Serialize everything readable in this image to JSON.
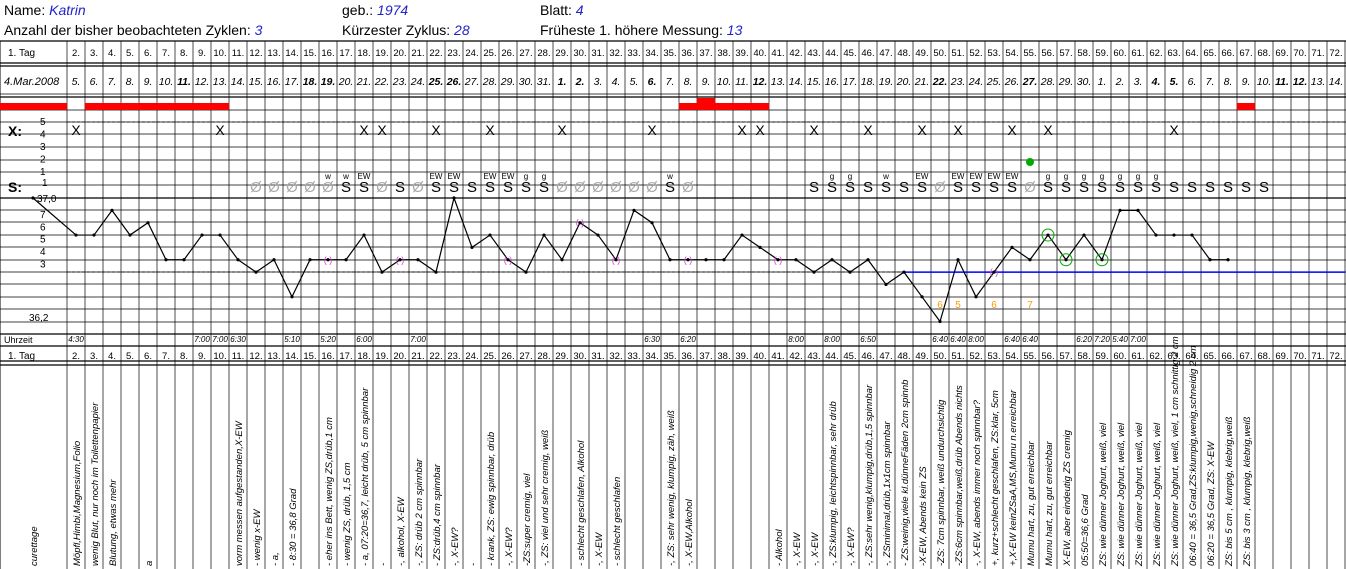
{
  "header": {
    "name_label": "Name:",
    "name_value": "Katrin",
    "born_label": "geb.:",
    "born_value": "1974",
    "sheet_label": "Blatt:",
    "sheet_value": "4",
    "cycles_label": "Anzahl der bisher beobachteten Zyklen:",
    "cycles_value": "3",
    "shortest_label": "Kürzester Zyklus:",
    "shortest_value": "28",
    "earliest_label": "Früheste 1. höhere Messung:",
    "earliest_value": "13"
  },
  "rows": {
    "day_label": "1. Tag",
    "start_date": "4.Mar.2008",
    "bleed_label": "6",
    "x_label": "X:",
    "s_label": "S:",
    "temp_top_label": "37,0",
    "temp_bottom_label": "36,2",
    "time_label": "Uhrzeit"
  },
  "days": [
    "2.",
    "3.",
    "4.",
    "5.",
    "6.",
    "7.",
    "8.",
    "9.",
    "10.",
    "11.",
    "12.",
    "13.",
    "14.",
    "15.",
    "16.",
    "17.",
    "18.",
    "19.",
    "20.",
    "21.",
    "22.",
    "23.",
    "24.",
    "25.",
    "26.",
    "27.",
    "28.",
    "29.",
    "30.",
    "31.",
    "32.",
    "33.",
    "34.",
    "35.",
    "36.",
    "37.",
    "38.",
    "39.",
    "40.",
    "41.",
    "42.",
    "43.",
    "44.",
    "45.",
    "46.",
    "47.",
    "48.",
    "49.",
    "50.",
    "51.",
    "52.",
    "53.",
    "54.",
    "55.",
    "56.",
    "57.",
    "58.",
    "59.",
    "60.",
    "61.",
    "62.",
    "63.",
    "64.",
    "65.",
    "66.",
    "67.",
    "68.",
    "69.",
    "70.",
    "71.",
    "72."
  ],
  "dates": [
    "5.",
    "6.",
    "7.",
    "8.",
    "9.",
    "10.",
    "11.",
    "12.",
    "13.",
    "14.",
    "15.",
    "16.",
    "17.",
    "18.",
    "19.",
    "20.",
    "21.",
    "22.",
    "23.",
    "24.",
    "25.",
    "26.",
    "27.",
    "28.",
    "29.",
    "30.",
    "31.",
    "1.",
    "2.",
    "3.",
    "4.",
    "5.",
    "6.",
    "7.",
    "8.",
    "9.",
    "10.",
    "11.",
    "12.",
    "13.",
    "14.",
    "15.",
    "16.",
    "17.",
    "18.",
    "19.",
    "20.",
    "21.",
    "22.",
    "23.",
    "24.",
    "25.",
    "26.",
    "27.",
    "28.",
    "29.",
    "30.",
    "1.",
    "2.",
    "3.",
    "4.",
    "5.",
    "6.",
    "7.",
    "8.",
    "9.",
    "10.",
    "11.",
    "12.",
    "13.",
    "14."
  ],
  "bold_date_days": [
    8,
    15,
    16,
    22,
    23,
    29,
    30,
    34,
    40,
    50,
    55,
    62,
    63,
    69,
    70
  ],
  "temp_ticks": [
    "7",
    "6",
    "5",
    "4",
    "3"
  ],
  "x_ticks": [
    "5",
    "4",
    "3",
    "2",
    "1"
  ],
  "bleed_ticks": [
    "6"
  ],
  "chart_data": {
    "type": "line",
    "title": "",
    "xlabel": "1. Tag",
    "ylabel": "",
    "ylim": [
      36.1,
      37.0
    ],
    "x": [
      1,
      2,
      3,
      4,
      5,
      6,
      7,
      8,
      9,
      10,
      11,
      12,
      13,
      14,
      15,
      16,
      17,
      18,
      19,
      20,
      21,
      22,
      23,
      24,
      25,
      26,
      27,
      28,
      29,
      30,
      31,
      32,
      33,
      34,
      35,
      36,
      37,
      38,
      39,
      40,
      41,
      42,
      43,
      44,
      45,
      46,
      47,
      48,
      49,
      50,
      51,
      52,
      53,
      54,
      55,
      56,
      57,
      58,
      59,
      60,
      61,
      62,
      63,
      64,
      65,
      66,
      67
    ],
    "series": [
      {
        "values": [
          37.0,
          36.7,
          36.7,
          36.9,
          36.7,
          36.8,
          36.5,
          36.5,
          36.7,
          36.7,
          36.5,
          36.4,
          36.5,
          36.2,
          36.5,
          36.5,
          36.5,
          36.7,
          36.4,
          36.5,
          36.5,
          36.4,
          37.0,
          36.6,
          36.7,
          36.5,
          36.4,
          36.7,
          36.5,
          36.8,
          36.7,
          36.5,
          36.9,
          36.8,
          36.5,
          36.5,
          36.5,
          36.5,
          36.7,
          36.6,
          36.5,
          36.5,
          36.4,
          36.5,
          36.4,
          36.5,
          36.3,
          36.4,
          36.2,
          36.0,
          36.5,
          36.2,
          36.4,
          36.6,
          36.5,
          36.7,
          36.5,
          36.7,
          36.5,
          36.9,
          36.9,
          36.7,
          36.7,
          36.7,
          36.5,
          36.5,
          null
        ]
      }
    ],
    "coverline": {
      "value": 36.4,
      "from_day": 48,
      "to_day": 72,
      "color": "#0000ff"
    },
    "bleeding": [
      {
        "day": 1,
        "level": 6
      },
      {
        "day": 3,
        "level": 6
      },
      {
        "day": 4,
        "level": 6
      },
      {
        "day": 5,
        "level": 6
      },
      {
        "day": 6,
        "level": 6
      },
      {
        "day": 7,
        "level": 6
      },
      {
        "day": 8,
        "level": 6
      },
      {
        "day": 9,
        "level": 6
      },
      {
        "day": 10,
        "level": 6
      },
      {
        "day": 36,
        "level": 6
      },
      {
        "day": 37,
        "level": 7
      },
      {
        "day": 38,
        "level": 6
      },
      {
        "day": 39,
        "level": 6
      },
      {
        "day": 40,
        "level": 6
      },
      {
        "day": 67,
        "level": 6
      }
    ],
    "x_marks": [
      2,
      10,
      18,
      19,
      22,
      25,
      29,
      34,
      39,
      40,
      43,
      46,
      49,
      51,
      54,
      56,
      63
    ],
    "s_marks": [
      {
        "day": 12,
        "sym": "Ø"
      },
      {
        "day": 13,
        "sym": "Ø"
      },
      {
        "day": 14,
        "sym": "Ø"
      },
      {
        "day": 15,
        "sym": "Ø"
      },
      {
        "day": 16,
        "sym": "Ø",
        "top": "w"
      },
      {
        "day": 17,
        "sym": "S",
        "top": "w"
      },
      {
        "day": 18,
        "sym": "S",
        "top": "EW"
      },
      {
        "day": 19,
        "sym": "Ø"
      },
      {
        "day": 20,
        "sym": "S"
      },
      {
        "day": 21,
        "sym": "Ø"
      },
      {
        "day": 22,
        "sym": "S",
        "top": "EW"
      },
      {
        "day": 23,
        "sym": "S",
        "top": "EW"
      },
      {
        "day": 24,
        "sym": "S"
      },
      {
        "day": 25,
        "sym": "S",
        "top": "EW"
      },
      {
        "day": 26,
        "sym": "S",
        "top": "EW"
      },
      {
        "day": 27,
        "sym": "S",
        "top": "g"
      },
      {
        "day": 28,
        "sym": "S",
        "top": "g"
      },
      {
        "day": 29,
        "sym": "Ø"
      },
      {
        "day": 30,
        "sym": "Ø"
      },
      {
        "day": 31,
        "sym": "Ø"
      },
      {
        "day": 32,
        "sym": "Ø"
      },
      {
        "day": 33,
        "sym": "Ø"
      },
      {
        "day": 34,
        "sym": "Ø"
      },
      {
        "day": 35,
        "sym": "S",
        "top": "w"
      },
      {
        "day": 36,
        "sym": "Ø"
      },
      {
        "day": 43,
        "sym": "S"
      },
      {
        "day": 44,
        "sym": "S",
        "top": "g"
      },
      {
        "day": 45,
        "sym": "S",
        "top": "g"
      },
      {
        "day": 46,
        "sym": "S"
      },
      {
        "day": 47,
        "sym": "S",
        "top": "w"
      },
      {
        "day": 48,
        "sym": "S"
      },
      {
        "day": 49,
        "sym": "S",
        "top": "EW"
      },
      {
        "day": 50,
        "sym": "Ø"
      },
      {
        "day": 51,
        "sym": "S",
        "top": "EW"
      },
      {
        "day": 52,
        "sym": "S",
        "top": "EW"
      },
      {
        "day": 53,
        "sym": "S",
        "top": "EW"
      },
      {
        "day": 54,
        "sym": "S",
        "top": "EW"
      },
      {
        "day": 55,
        "sym": "Ø"
      },
      {
        "day": 56,
        "sym": "S",
        "top": "g"
      },
      {
        "day": 57,
        "sym": "S",
        "top": "g"
      },
      {
        "day": 58,
        "sym": "S",
        "top": "g"
      },
      {
        "day": 59,
        "sym": "S",
        "top": "g"
      },
      {
        "day": 60,
        "sym": "S",
        "top": "g"
      },
      {
        "day": 61,
        "sym": "S",
        "top": "g"
      },
      {
        "day": 62,
        "sym": "S",
        "top": "g"
      },
      {
        "day": 63,
        "sym": "S"
      },
      {
        "day": 64,
        "sym": "S"
      },
      {
        "day": 65,
        "sym": "S"
      },
      {
        "day": 66,
        "sym": "S"
      },
      {
        "day": 67,
        "sym": "S"
      },
      {
        "day": 68,
        "sym": "S"
      }
    ],
    "green_dot_day": 55,
    "circled_days": [
      56,
      57,
      59
    ],
    "bracketed_days": [
      16,
      20,
      26,
      30,
      32,
      36,
      41,
      53
    ],
    "orange_labels": [
      {
        "day": 50,
        "text": "6"
      },
      {
        "day": 51,
        "text": "5"
      },
      {
        "day": 53,
        "text": "6"
      },
      {
        "day": 55,
        "text": "7"
      }
    ]
  },
  "times": [
    {
      "day": 2,
      "text": "4:30"
    },
    {
      "day": 9,
      "text": "7:00"
    },
    {
      "day": 10,
      "text": "7:00"
    },
    {
      "day": 11,
      "text": "6:30"
    },
    {
      "day": 14,
      "text": "5:10"
    },
    {
      "day": 16,
      "text": "5:20"
    },
    {
      "day": 18,
      "text": "6:00"
    },
    {
      "day": 21,
      "text": "7:00"
    },
    {
      "day": 34,
      "text": "6:30"
    },
    {
      "day": 36,
      "text": "6:20"
    },
    {
      "day": 42,
      "text": "8:00"
    },
    {
      "day": 44,
      "text": "8:00"
    },
    {
      "day": 46,
      "text": "6:50"
    },
    {
      "day": 50,
      "text": "6:40"
    },
    {
      "day": 51,
      "text": "6:40"
    },
    {
      "day": 52,
      "text": "8:00"
    },
    {
      "day": 54,
      "text": "6:40"
    },
    {
      "day": 55,
      "text": "6:40"
    },
    {
      "day": 58,
      "text": "6:20"
    },
    {
      "day": 59,
      "text": "7:20"
    },
    {
      "day": 60,
      "text": "5:40"
    },
    {
      "day": 61,
      "text": "7:00"
    }
  ],
  "notes": [
    {
      "day": 1,
      "text": "curettage"
    },
    {
      "day": 2,
      "text": "Möpfl,Himbi,Magnesium,Folio"
    },
    {
      "day": 3,
      "text": "wenig Blut, nur noch im Toilettenpapier"
    },
    {
      "day": 4,
      "text": "Blutung, etwas mehr"
    },
    {
      "day": 6,
      "text": "a"
    },
    {
      "day": 11,
      "text": "vorm messen aufgestanden,X-EW"
    },
    {
      "day": 12,
      "text": "- wenig x-EW"
    },
    {
      "day": 13,
      "text": "- a,"
    },
    {
      "day": 14,
      "text": "- 8:30 = 36,8 Grad"
    },
    {
      "day": 16,
      "text": "- eher ins Bett, wenig ZS,drüb,1 cm"
    },
    {
      "day": 17,
      "text": "- wenig ZS, drüb, 1,5 cm"
    },
    {
      "day": 18,
      "text": "- a, 07:20=36,7, leicht drüb, 5 cm spinnbar"
    },
    {
      "day": 19,
      "text": "-"
    },
    {
      "day": 20,
      "text": "-, alkohol, X-EW"
    },
    {
      "day": 21,
      "text": "-, ZS: drüb 2 cm spinnbar"
    },
    {
      "day": 22,
      "text": "- ZS:drüb,4 cm spinnbar"
    },
    {
      "day": 23,
      "text": "-, X-EW?"
    },
    {
      "day": 24,
      "text": "-"
    },
    {
      "day": 25,
      "text": "- krank, ZS: ewig spinnbar, drüb"
    },
    {
      "day": 26,
      "text": "-, X-EW?"
    },
    {
      "day": 27,
      "text": "-ZS:super cremig, viel"
    },
    {
      "day": 28,
      "text": "-, ZS: viel und sehr cremig, weiß"
    },
    {
      "day": 30,
      "text": "- schlecht geschlafen, Alkohol"
    },
    {
      "day": 31,
      "text": "-, X-EW"
    },
    {
      "day": 32,
      "text": "- schlecht geschlafen"
    },
    {
      "day": 35,
      "text": "-, ZS: sehr wenig, klumpig, zäh, weiß"
    },
    {
      "day": 36,
      "text": "-, X-EW,Alkohol"
    },
    {
      "day": 41,
      "text": "- Alkohol"
    },
    {
      "day": 42,
      "text": "-, X-EW"
    },
    {
      "day": 43,
      "text": "-, X-EW"
    },
    {
      "day": 44,
      "text": "-, ZS:klumpig, leichtspinnbar, sehr drüb"
    },
    {
      "day": 45,
      "text": "-, X-EW?"
    },
    {
      "day": 46,
      "text": "-, ZS:sehr wenig,klumpig,drüb,1,5 spinnbar"
    },
    {
      "day": 47,
      "text": "-, ZSminimal,drüb,1x1cm spinnbar"
    },
    {
      "day": 48,
      "text": "- ZS:weinig,viele kl.dünneFäden 2cm spinnb"
    },
    {
      "day": 49,
      "text": "-X-EW, Abends kein ZS"
    },
    {
      "day": 50,
      "text": "-ZS: 7cm spinnbar, weiß undurchsichtig"
    },
    {
      "day": 51,
      "text": "-ZS:6cm spinnbar,weiß,drüb Abends nichts"
    },
    {
      "day": 52,
      "text": "-, X-EW, abends immer noch spinnbar?"
    },
    {
      "day": 53,
      "text": "+, kurz+schlecht geschlafen, ZS:klar, 5cm"
    },
    {
      "day": 54,
      "text": "+,X-EW keinZSaA,MS,Mumu n.erreichbar"
    },
    {
      "day": 55,
      "text": "Mumu hart, zu, gut erreichbar"
    },
    {
      "day": 56,
      "text": "Mumu hart, zu, gut erreichbar"
    },
    {
      "day": 57,
      "text": "X-EW, aber eindeutig ZS cremig"
    },
    {
      "day": 58,
      "text": "05:50=36,6 Grad"
    },
    {
      "day": 59,
      "text": "ZS: wie dünner Joghurt, weiß, viel"
    },
    {
      "day": 60,
      "text": "ZS: wie dünner Joghurt, weiß, viel"
    },
    {
      "day": 61,
      "text": "ZS: wie dünner Joghurt, weiß, viel"
    },
    {
      "day": 62,
      "text": "ZS: wie dünner Joghurt, weiß, viel"
    },
    {
      "day": 63,
      "text": "ZS: wie dünner Joghurt, weiß, viel, 1 cm schnittig 2 cm"
    },
    {
      "day": 64,
      "text": "06:40 = 36,5 Grad,ZS:klumpig,wenig,schneidig 2 cm"
    },
    {
      "day": 65,
      "text": "06:20 = 36,5 Grad, ZS: X-EW"
    },
    {
      "day": 66,
      "text": "ZS: bis 5 cm , klumpig, klebrig,weiß"
    },
    {
      "day": 67,
      "text": "ZS: bis 3 cm , klumpig, klebrig,weiß"
    }
  ],
  "colors": {
    "bleed": "#ff0000",
    "coverline": "#0000ff",
    "accent_text": "#2222cc",
    "green": "#00aa00",
    "magenta": "#cc44cc",
    "orange": "#ff9900"
  }
}
